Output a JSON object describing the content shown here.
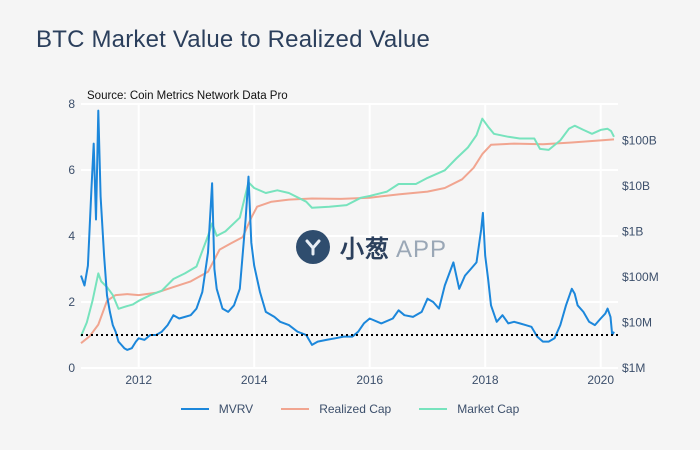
{
  "chart_data": {
    "type": "line",
    "title": "BTC Market Value to Realized Value",
    "annotation": "Source: Coin Metrics Network Data Pro",
    "x_ticks": [
      "2012",
      "2014",
      "2016",
      "2018",
      "2020"
    ],
    "x_range": [
      2011.0,
      2020.3
    ],
    "y_left": {
      "ticks": [
        "0",
        "2",
        "4",
        "6",
        "8"
      ],
      "range": [
        0,
        8
      ]
    },
    "y_right": {
      "scale": "log",
      "ticks": [
        "$1M",
        "$10M",
        "$100M",
        "$1B",
        "$10B",
        "$100B"
      ],
      "range_log10": [
        6,
        11.8
      ]
    },
    "reference_line": {
      "y": 1,
      "style": "dotted"
    },
    "series": [
      {
        "name": "MVRV",
        "axis": "left",
        "color": "#1c87db",
        "points": [
          [
            2011.0,
            2.8
          ],
          [
            2011.06,
            2.5
          ],
          [
            2011.12,
            3.1
          ],
          [
            2011.18,
            5.4
          ],
          [
            2011.22,
            6.8
          ],
          [
            2011.26,
            4.5
          ],
          [
            2011.3,
            7.8
          ],
          [
            2011.34,
            5.2
          ],
          [
            2011.4,
            3.4
          ],
          [
            2011.45,
            2.2
          ],
          [
            2011.5,
            1.7
          ],
          [
            2011.55,
            1.3
          ],
          [
            2011.6,
            1.1
          ],
          [
            2011.65,
            0.8
          ],
          [
            2011.7,
            0.7
          ],
          [
            2011.75,
            0.6
          ],
          [
            2011.8,
            0.55
          ],
          [
            2011.88,
            0.6
          ],
          [
            2011.95,
            0.8
          ],
          [
            2012.0,
            0.9
          ],
          [
            2012.1,
            0.85
          ],
          [
            2012.2,
            1.0
          ],
          [
            2012.3,
            1.0
          ],
          [
            2012.4,
            1.1
          ],
          [
            2012.5,
            1.3
          ],
          [
            2012.6,
            1.6
          ],
          [
            2012.7,
            1.5
          ],
          [
            2012.8,
            1.55
          ],
          [
            2012.9,
            1.6
          ],
          [
            2013.0,
            1.8
          ],
          [
            2013.1,
            2.3
          ],
          [
            2013.2,
            3.5
          ],
          [
            2013.27,
            5.6
          ],
          [
            2013.31,
            3.0
          ],
          [
            2013.35,
            2.4
          ],
          [
            2013.45,
            1.8
          ],
          [
            2013.55,
            1.7
          ],
          [
            2013.65,
            1.9
          ],
          [
            2013.75,
            2.4
          ],
          [
            2013.85,
            4.5
          ],
          [
            2013.9,
            5.8
          ],
          [
            2013.95,
            3.8
          ],
          [
            2014.0,
            3.1
          ],
          [
            2014.1,
            2.3
          ],
          [
            2014.2,
            1.7
          ],
          [
            2014.35,
            1.55
          ],
          [
            2014.45,
            1.4
          ],
          [
            2014.6,
            1.3
          ],
          [
            2014.75,
            1.1
          ],
          [
            2014.9,
            1.0
          ],
          [
            2015.0,
            0.7
          ],
          [
            2015.1,
            0.8
          ],
          [
            2015.25,
            0.85
          ],
          [
            2015.4,
            0.9
          ],
          [
            2015.55,
            0.95
          ],
          [
            2015.7,
            0.95
          ],
          [
            2015.8,
            1.1
          ],
          [
            2015.9,
            1.35
          ],
          [
            2016.0,
            1.5
          ],
          [
            2016.2,
            1.35
          ],
          [
            2016.4,
            1.5
          ],
          [
            2016.5,
            1.75
          ],
          [
            2016.6,
            1.6
          ],
          [
            2016.75,
            1.55
          ],
          [
            2016.9,
            1.7
          ],
          [
            2017.0,
            2.1
          ],
          [
            2017.1,
            2.0
          ],
          [
            2017.2,
            1.8
          ],
          [
            2017.3,
            2.5
          ],
          [
            2017.45,
            3.2
          ],
          [
            2017.55,
            2.4
          ],
          [
            2017.65,
            2.8
          ],
          [
            2017.75,
            3.0
          ],
          [
            2017.85,
            3.2
          ],
          [
            2017.93,
            4.2
          ],
          [
            2017.96,
            4.7
          ],
          [
            2018.0,
            3.4
          ],
          [
            2018.05,
            2.7
          ],
          [
            2018.1,
            1.9
          ],
          [
            2018.2,
            1.4
          ],
          [
            2018.3,
            1.6
          ],
          [
            2018.4,
            1.35
          ],
          [
            2018.5,
            1.4
          ],
          [
            2018.6,
            1.35
          ],
          [
            2018.7,
            1.3
          ],
          [
            2018.8,
            1.25
          ],
          [
            2018.9,
            0.95
          ],
          [
            2019.0,
            0.8
          ],
          [
            2019.1,
            0.8
          ],
          [
            2019.2,
            0.9
          ],
          [
            2019.3,
            1.3
          ],
          [
            2019.4,
            1.9
          ],
          [
            2019.5,
            2.4
          ],
          [
            2019.55,
            2.25
          ],
          [
            2019.6,
            1.9
          ],
          [
            2019.7,
            1.7
          ],
          [
            2019.8,
            1.4
          ],
          [
            2019.9,
            1.3
          ],
          [
            2020.0,
            1.5
          ],
          [
            2020.08,
            1.65
          ],
          [
            2020.12,
            1.8
          ],
          [
            2020.17,
            1.55
          ],
          [
            2020.2,
            1.0
          ],
          [
            2020.23,
            1.1
          ]
        ]
      },
      {
        "name": "Realized Cap",
        "axis": "right",
        "color": "#f1a590",
        "points": [
          [
            2011.0,
            3500000
          ],
          [
            2011.15,
            5000000
          ],
          [
            2011.3,
            9000000
          ],
          [
            2011.45,
            30000000
          ],
          [
            2011.6,
            40000000
          ],
          [
            2011.8,
            42000000
          ],
          [
            2012.0,
            40000000
          ],
          [
            2012.3,
            45000000
          ],
          [
            2012.6,
            60000000
          ],
          [
            2012.9,
            80000000
          ],
          [
            2013.2,
            130000000
          ],
          [
            2013.4,
            400000000
          ],
          [
            2013.6,
            550000000
          ],
          [
            2013.8,
            750000000
          ],
          [
            2013.95,
            2000000000
          ],
          [
            2014.05,
            3500000000
          ],
          [
            2014.3,
            4500000000
          ],
          [
            2014.6,
            5000000000
          ],
          [
            2015.0,
            5300000000
          ],
          [
            2015.5,
            5200000000
          ],
          [
            2016.0,
            5500000000
          ],
          [
            2016.5,
            6500000000
          ],
          [
            2017.0,
            7500000000
          ],
          [
            2017.3,
            9000000000
          ],
          [
            2017.6,
            14000000000
          ],
          [
            2017.8,
            25000000000
          ],
          [
            2017.95,
            50000000000
          ],
          [
            2018.1,
            80000000000
          ],
          [
            2018.5,
            85000000000
          ],
          [
            2019.0,
            82000000000
          ],
          [
            2019.5,
            90000000000
          ],
          [
            2020.0,
            100000000000
          ],
          [
            2020.23,
            105000000000
          ]
        ]
      },
      {
        "name": "Market Cap",
        "axis": "right",
        "color": "#77e3bd",
        "points": [
          [
            2011.0,
            5000000
          ],
          [
            2011.1,
            10000000
          ],
          [
            2011.2,
            30000000
          ],
          [
            2011.3,
            120000000
          ],
          [
            2011.35,
            80000000
          ],
          [
            2011.45,
            60000000
          ],
          [
            2011.55,
            40000000
          ],
          [
            2011.65,
            20000000
          ],
          [
            2011.75,
            22000000
          ],
          [
            2011.9,
            25000000
          ],
          [
            2012.0,
            30000000
          ],
          [
            2012.2,
            40000000
          ],
          [
            2012.4,
            50000000
          ],
          [
            2012.6,
            90000000
          ],
          [
            2012.8,
            120000000
          ],
          [
            2013.0,
            170000000
          ],
          [
            2013.2,
            800000000
          ],
          [
            2013.27,
            1500000000
          ],
          [
            2013.35,
            800000000
          ],
          [
            2013.5,
            1000000000
          ],
          [
            2013.75,
            2000000000
          ],
          [
            2013.9,
            12000000000
          ],
          [
            2014.0,
            9000000000
          ],
          [
            2014.2,
            7000000000
          ],
          [
            2014.4,
            8000000000
          ],
          [
            2014.6,
            7000000000
          ],
          [
            2014.9,
            4500000000
          ],
          [
            2015.0,
            3300000000
          ],
          [
            2015.3,
            3500000000
          ],
          [
            2015.6,
            3800000000
          ],
          [
            2015.85,
            5500000000
          ],
          [
            2016.0,
            6000000000
          ],
          [
            2016.3,
            7500000000
          ],
          [
            2016.5,
            11000000000
          ],
          [
            2016.8,
            11000000000
          ],
          [
            2017.0,
            15000000000
          ],
          [
            2017.3,
            22000000000
          ],
          [
            2017.5,
            40000000000
          ],
          [
            2017.7,
            70000000000
          ],
          [
            2017.85,
            130000000000
          ],
          [
            2017.95,
            300000000000
          ],
          [
            2018.05,
            200000000000
          ],
          [
            2018.15,
            140000000000
          ],
          [
            2018.4,
            120000000000
          ],
          [
            2018.6,
            110000000000
          ],
          [
            2018.85,
            110000000000
          ],
          [
            2018.95,
            65000000000
          ],
          [
            2019.1,
            62000000000
          ],
          [
            2019.3,
            100000000000
          ],
          [
            2019.45,
            180000000000
          ],
          [
            2019.55,
            210000000000
          ],
          [
            2019.7,
            170000000000
          ],
          [
            2019.85,
            140000000000
          ],
          [
            2020.0,
            170000000000
          ],
          [
            2020.12,
            180000000000
          ],
          [
            2020.18,
            160000000000
          ],
          [
            2020.23,
            120000000000
          ]
        ]
      }
    ]
  },
  "legend": {
    "mvrv": "MVRV",
    "realized": "Realized Cap",
    "market": "Market Cap"
  },
  "watermark": {
    "cn_text": "小葱",
    "app_text": "APP"
  }
}
